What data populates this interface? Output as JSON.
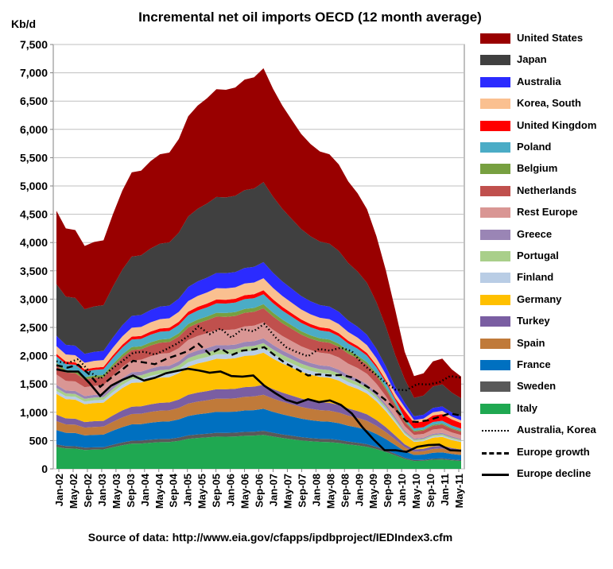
{
  "chart_data": {
    "type": "area",
    "title": "Incremental net oil imports OECD (12 month average)",
    "ylabel": "Kb/d",
    "xlabel": "",
    "source": "Source of data: http://www.eia.gov/cfapps/ipdbproject/IEDIndex3.cfm",
    "ylim": [
      0,
      7500
    ],
    "yticks": [
      "0",
      "500",
      "1,000",
      "1,500",
      "2,000",
      "2,500",
      "3,000",
      "3,500",
      "4,000",
      "4,500",
      "5,000",
      "5,500",
      "6,000",
      "6,500",
      "7,000",
      "7,500"
    ],
    "ytick_values": [
      0,
      500,
      1000,
      1500,
      2000,
      2500,
      3000,
      3500,
      4000,
      4500,
      5000,
      5500,
      6000,
      6500,
      7000,
      7500
    ],
    "xticks": [
      "Jan-02",
      "May-02",
      "Sep-02",
      "Jan-03",
      "May-03",
      "Sep-03",
      "Jan-04",
      "May-04",
      "Sep-04",
      "Jan-05",
      "May-05",
      "Sep-05",
      "Jan-06",
      "May-06",
      "Sep-06",
      "Jan-07",
      "May-07",
      "Sep-07",
      "Jan-08",
      "May-08",
      "Sep-08",
      "Jan-09",
      "May-09",
      "Sep-09",
      "Jan-10",
      "May-10",
      "Sep-10",
      "Jan-11",
      "May-11"
    ],
    "grid": true,
    "legend_position": "right",
    "stack_order_bottom_to_top": [
      "Italy",
      "Sweden",
      "France",
      "Spain",
      "Turkey",
      "Germany",
      "Finland",
      "Portugal",
      "Greece",
      "Rest Europe",
      "Netherlands",
      "Belgium",
      "Poland",
      "United Kingdom",
      "Korea, South",
      "Australia",
      "Japan",
      "United States"
    ],
    "cumulative_top": [
      4560,
      4250,
      4220,
      3940,
      4010,
      4040,
      4500,
      4920,
      5240,
      5270,
      5440,
      5560,
      5590,
      5830,
      6230,
      6420,
      6550,
      6710,
      6700,
      6740,
      6880,
      6920,
      7080,
      6720,
      6420,
      6170,
      5920,
      5740,
      5610,
      5560,
      5380,
      5080,
      4870,
      4590,
      4110,
      3510,
      2810,
      2070,
      1640,
      1690,
      1900,
      1950,
      1760,
      1630
    ],
    "series": [
      {
        "name": "United States",
        "color": "#990000"
      },
      {
        "name": "Japan",
        "color": "#404040"
      },
      {
        "name": "Australia",
        "color": "#2b2bff"
      },
      {
        "name": "Korea, South",
        "color": "#fac090"
      },
      {
        "name": "United Kingdom",
        "color": "#ff0000"
      },
      {
        "name": "Poland",
        "color": "#4bacc6"
      },
      {
        "name": "Belgium",
        "color": "#77a040"
      },
      {
        "name": "Netherlands",
        "color": "#c0504d"
      },
      {
        "name": "Rest Europe",
        "color": "#d99694"
      },
      {
        "name": "Greece",
        "color": "#9a85b5"
      },
      {
        "name": "Portugal",
        "color": "#a9cf8a"
      },
      {
        "name": "Finland",
        "color": "#b9cde5"
      },
      {
        "name": "Germany",
        "color": "#ffc000"
      },
      {
        "name": "Turkey",
        "color": "#7a5ea2"
      },
      {
        "name": "Spain",
        "color": "#c07a3a"
      },
      {
        "name": "France",
        "color": "#0070c0"
      },
      {
        "name": "Sweden",
        "color": "#595959"
      },
      {
        "name": "Italy",
        "color": "#1fa851"
      }
    ],
    "lines": [
      {
        "name": "Australia, Korea",
        "style": "dotted",
        "values": [
          1900,
          1870,
          1940,
          1720,
          1590,
          1760,
          1900,
          2050,
          2070,
          2020,
          2110,
          2210,
          2340,
          2520,
          2380,
          2480,
          2320,
          2470,
          2430,
          2560,
          2330,
          2150,
          2060,
          1990,
          2120,
          2090,
          2140,
          2080,
          1850,
          1700,
          1540,
          1400,
          1390,
          1500,
          1490,
          1530,
          1640,
          1610
        ]
      },
      {
        "name": "Europe growth",
        "style": "dashed",
        "values": [
          1830,
          1790,
          1840,
          1670,
          1450,
          1610,
          1750,
          1910,
          1880,
          1850,
          1940,
          2010,
          2080,
          2210,
          2030,
          2130,
          2010,
          2090,
          2110,
          2150,
          2000,
          1860,
          1760,
          1650,
          1670,
          1650,
          1660,
          1620,
          1500,
          1380,
          1230,
          1050,
          840,
          830,
          860,
          920,
          980,
          940
        ]
      },
      {
        "name": "Europe decline",
        "style": "solid",
        "values": [
          1760,
          1720,
          1720,
          1520,
          1290,
          1470,
          1570,
          1650,
          1560,
          1610,
          1690,
          1730,
          1770,
          1740,
          1700,
          1720,
          1640,
          1630,
          1650,
          1470,
          1340,
          1220,
          1160,
          1230,
          1180,
          1210,
          1130,
          980,
          730,
          520,
          330,
          330,
          300,
          390,
          420,
          430,
          330,
          320
        ]
      }
    ]
  }
}
